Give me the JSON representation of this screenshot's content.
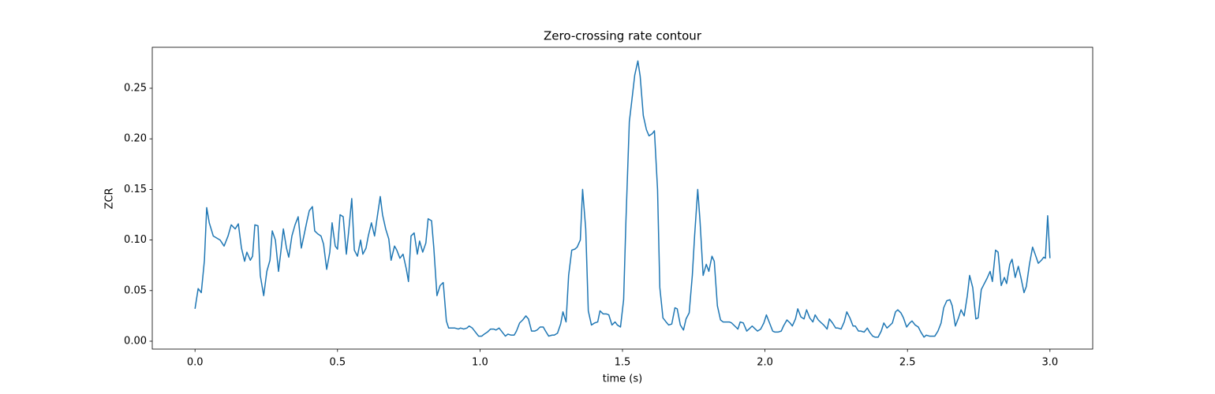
{
  "chart_data": {
    "type": "line",
    "title": "Zero-crossing rate contour",
    "x_label": "time (s)",
    "y_label": "ZCR",
    "x": [
      0,
      0.011,
      0.022,
      0.033,
      0.041,
      0.05,
      0.064,
      0.088,
      0.102,
      0.116,
      0.127,
      0.141,
      0.152,
      0.163,
      0.174,
      0.182,
      0.194,
      0.202,
      0.21,
      0.221,
      0.229,
      0.241,
      0.252,
      0.263,
      0.271,
      0.282,
      0.293,
      0.301,
      0.31,
      0.321,
      0.329,
      0.34,
      0.351,
      0.362,
      0.373,
      0.382,
      0.393,
      0.401,
      0.412,
      0.42,
      0.431,
      0.442,
      0.451,
      0.462,
      0.473,
      0.481,
      0.492,
      0.5,
      0.509,
      0.52,
      0.531,
      0.539,
      0.55,
      0.559,
      0.57,
      0.581,
      0.589,
      0.6,
      0.608,
      0.619,
      0.63,
      0.639,
      0.65,
      0.658,
      0.669,
      0.68,
      0.688,
      0.7,
      0.708,
      0.719,
      0.73,
      0.741,
      0.749,
      0.758,
      0.769,
      0.78,
      0.788,
      0.799,
      0.81,
      0.818,
      0.83,
      0.838,
      0.849,
      0.86,
      0.871,
      0.882,
      0.89,
      0.901,
      0.912,
      0.924,
      0.932,
      0.943,
      0.954,
      0.962,
      0.973,
      0.984,
      0.995,
      1.006,
      1.015,
      1.026,
      1.037,
      1.048,
      1.056,
      1.067,
      1.078,
      1.089,
      1.098,
      1.109,
      1.12,
      1.128,
      1.139,
      1.15,
      1.161,
      1.17,
      1.181,
      1.192,
      1.2,
      1.211,
      1.222,
      1.23,
      1.241,
      1.253,
      1.261,
      1.272,
      1.283,
      1.291,
      1.302,
      1.311,
      1.322,
      1.333,
      1.341,
      1.352,
      1.36,
      1.371,
      1.38,
      1.391,
      1.402,
      1.413,
      1.421,
      1.432,
      1.443,
      1.452,
      1.463,
      1.474,
      1.482,
      1.493,
      1.504,
      1.512,
      1.524,
      1.532,
      1.543,
      1.554,
      1.562,
      1.573,
      1.584,
      1.593,
      1.604,
      1.612,
      1.623,
      1.631,
      1.642,
      1.653,
      1.662,
      1.673,
      1.684,
      1.692,
      1.703,
      1.714,
      1.723,
      1.734,
      1.745,
      1.753,
      1.764,
      1.772,
      1.783,
      1.794,
      1.803,
      1.814,
      1.822,
      1.833,
      1.844,
      1.853,
      1.864,
      1.875,
      1.883,
      1.894,
      1.905,
      1.913,
      1.924,
      1.936,
      1.944,
      1.955,
      1.966,
      1.974,
      1.985,
      1.996,
      2.005,
      2.016,
      2.027,
      2.035,
      2.046,
      2.057,
      2.065,
      2.077,
      2.088,
      2.096,
      2.107,
      2.115,
      2.126,
      2.137,
      2.146,
      2.157,
      2.168,
      2.176,
      2.187,
      2.198,
      2.206,
      2.218,
      2.226,
      2.237,
      2.248,
      2.256,
      2.267,
      2.278,
      2.287,
      2.298,
      2.309,
      2.317,
      2.328,
      2.336,
      2.348,
      2.359,
      2.367,
      2.378,
      2.386,
      2.397,
      2.408,
      2.417,
      2.428,
      2.436,
      2.447,
      2.458,
      2.466,
      2.477,
      2.486,
      2.497,
      2.508,
      2.516,
      2.527,
      2.538,
      2.547,
      2.558,
      2.566,
      2.577,
      2.588,
      2.596,
      2.607,
      2.618,
      2.627,
      2.638,
      2.649,
      2.657,
      2.668,
      2.679,
      2.688,
      2.699,
      2.71,
      2.718,
      2.729,
      2.74,
      2.748,
      2.759,
      2.768,
      2.779,
      2.79,
      2.798,
      2.809,
      2.818,
      2.829,
      2.84,
      2.848,
      2.859,
      2.867,
      2.878,
      2.889,
      2.898,
      2.909,
      2.917,
      2.928,
      2.939,
      2.948,
      2.959,
      2.97,
      2.978,
      2.984,
      2.992,
      3.0
    ],
    "series": [
      {
        "color": "#1f77b4",
        "values": [
          0.032,
          0.052,
          0.048,
          0.08,
          0.132,
          0.117,
          0.104,
          0.1,
          0.094,
          0.104,
          0.115,
          0.111,
          0.116,
          0.092,
          0.079,
          0.088,
          0.08,
          0.084,
          0.115,
          0.114,
          0.065,
          0.045,
          0.069,
          0.08,
          0.109,
          0.1,
          0.069,
          0.088,
          0.111,
          0.092,
          0.083,
          0.104,
          0.115,
          0.123,
          0.092,
          0.104,
          0.119,
          0.129,
          0.133,
          0.109,
          0.106,
          0.104,
          0.096,
          0.071,
          0.088,
          0.117,
          0.094,
          0.091,
          0.125,
          0.123,
          0.086,
          0.108,
          0.141,
          0.09,
          0.084,
          0.1,
          0.086,
          0.092,
          0.104,
          0.117,
          0.104,
          0.122,
          0.143,
          0.125,
          0.111,
          0.101,
          0.08,
          0.094,
          0.09,
          0.082,
          0.086,
          0.072,
          0.059,
          0.104,
          0.107,
          0.086,
          0.099,
          0.088,
          0.097,
          0.121,
          0.119,
          0.092,
          0.045,
          0.055,
          0.058,
          0.02,
          0.013,
          0.013,
          0.013,
          0.012,
          0.013,
          0.012,
          0.013,
          0.015,
          0.013,
          0.009,
          0.005,
          0.005,
          0.007,
          0.009,
          0.012,
          0.012,
          0.011,
          0.013,
          0.009,
          0.005,
          0.007,
          0.006,
          0.006,
          0.01,
          0.018,
          0.021,
          0.025,
          0.022,
          0.01,
          0.01,
          0.011,
          0.014,
          0.014,
          0.01,
          0.005,
          0.006,
          0.006,
          0.008,
          0.017,
          0.029,
          0.019,
          0.065,
          0.09,
          0.091,
          0.093,
          0.1,
          0.15,
          0.111,
          0.03,
          0.016,
          0.018,
          0.019,
          0.03,
          0.027,
          0.027,
          0.026,
          0.016,
          0.019,
          0.016,
          0.014,
          0.041,
          0.118,
          0.217,
          0.236,
          0.263,
          0.277,
          0.262,
          0.223,
          0.209,
          0.203,
          0.205,
          0.208,
          0.15,
          0.053,
          0.023,
          0.019,
          0.016,
          0.017,
          0.033,
          0.032,
          0.016,
          0.011,
          0.022,
          0.028,
          0.065,
          0.104,
          0.15,
          0.119,
          0.065,
          0.076,
          0.069,
          0.084,
          0.079,
          0.035,
          0.021,
          0.019,
          0.019,
          0.019,
          0.018,
          0.015,
          0.012,
          0.019,
          0.018,
          0.01,
          0.012,
          0.015,
          0.012,
          0.01,
          0.012,
          0.018,
          0.026,
          0.018,
          0.01,
          0.009,
          0.009,
          0.01,
          0.015,
          0.021,
          0.018,
          0.015,
          0.022,
          0.032,
          0.024,
          0.022,
          0.031,
          0.023,
          0.019,
          0.026,
          0.021,
          0.018,
          0.016,
          0.012,
          0.022,
          0.018,
          0.013,
          0.013,
          0.012,
          0.019,
          0.029,
          0.023,
          0.015,
          0.015,
          0.01,
          0.01,
          0.009,
          0.013,
          0.009,
          0.005,
          0.004,
          0.004,
          0.01,
          0.018,
          0.013,
          0.015,
          0.018,
          0.029,
          0.031,
          0.028,
          0.023,
          0.014,
          0.018,
          0.02,
          0.016,
          0.014,
          0.009,
          0.004,
          0.006,
          0.005,
          0.005,
          0.005,
          0.01,
          0.018,
          0.033,
          0.04,
          0.041,
          0.035,
          0.015,
          0.023,
          0.031,
          0.025,
          0.045,
          0.065,
          0.053,
          0.022,
          0.023,
          0.051,
          0.056,
          0.062,
          0.069,
          0.059,
          0.09,
          0.088,
          0.055,
          0.063,
          0.057,
          0.076,
          0.081,
          0.063,
          0.074,
          0.063,
          0.048,
          0.054,
          0.076,
          0.093,
          0.086,
          0.077,
          0.08,
          0.083,
          0.082,
          0.124,
          0.082
        ]
      }
    ],
    "xlim": [
      -0.15,
      3.15
    ],
    "ylim": [
      -0.0078,
      0.2905
    ],
    "xticks": [
      {
        "value": 0,
        "label": "0.0"
      },
      0.5,
      {
        "value": 1,
        "label": "1.0"
      },
      1.5,
      {
        "value": 2,
        "label": "2.0"
      },
      2.5,
      {
        "value": 3,
        "label": "3.0"
      }
    ],
    "yticks": [
      {
        "value": 0,
        "label": "0.00"
      },
      {
        "value": 0.05,
        "label": "0.05"
      },
      {
        "value": 0.1,
        "label": "0.10"
      },
      {
        "value": 0.15,
        "label": "0.15"
      },
      {
        "value": 0.2,
        "label": "0.20"
      },
      {
        "value": 0.25,
        "label": "0.25"
      }
    ],
    "grid": false
  }
}
